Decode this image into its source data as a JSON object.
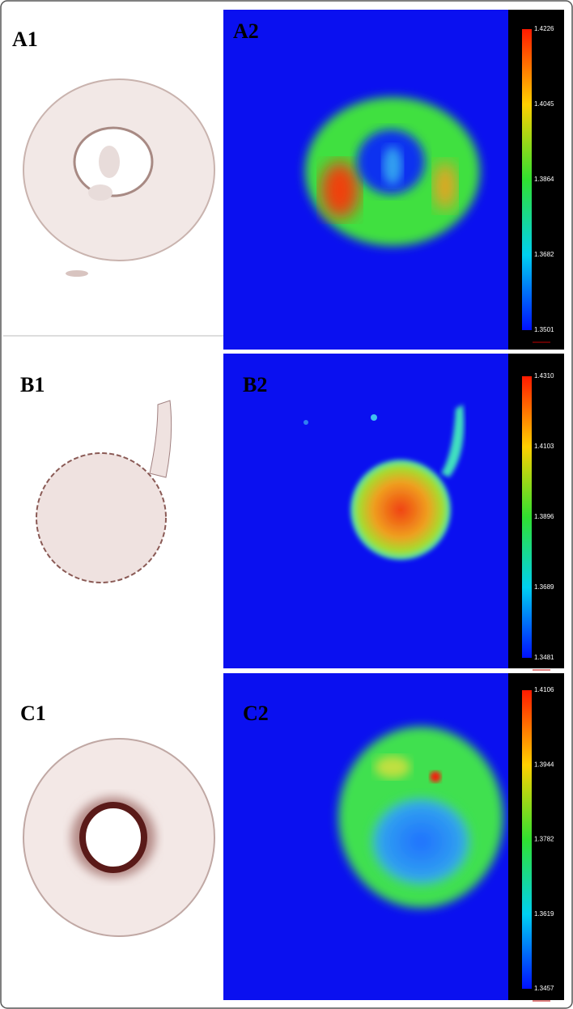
{
  "panels": [
    {
      "label": "A1"
    },
    {
      "label": "A2",
      "colorbar": [
        "1.4226",
        "1.4045",
        "1.3864",
        "1.3682",
        "1.3501"
      ]
    },
    {
      "label": "B1"
    },
    {
      "label": "B2",
      "colorbar": [
        "1.4310",
        "1.4103",
        "1.3896",
        "1.3689",
        "1.3481"
      ]
    },
    {
      "label": "C1"
    },
    {
      "label": "C2",
      "colorbar": [
        "1.4106",
        "1.3944",
        "1.3782",
        "1.3619",
        "1.3457"
      ]
    }
  ]
}
